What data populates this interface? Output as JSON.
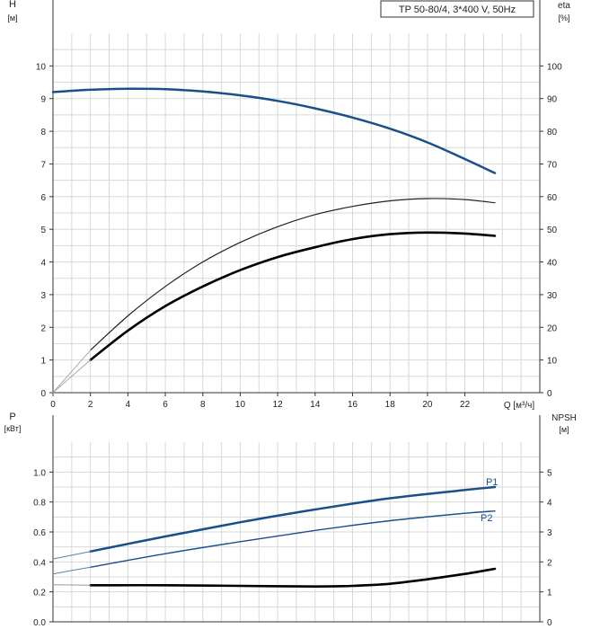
{
  "title": "TP 50-80/4, 3*400 V, 50Hz",
  "chart_data": [
    {
      "type": "line",
      "title": "TP 50-80/4, 3*400 V, 50Hz",
      "xlabel": "Q [м³/ч]",
      "xlim": [
        0,
        26
      ],
      "xticks": [
        0,
        2,
        4,
        6,
        8,
        10,
        12,
        14,
        16,
        18,
        20,
        22
      ],
      "left_axis": {
        "label_line1": "H",
        "label_line2": "[м]",
        "ylim": [
          0,
          11
        ],
        "ticks": [
          0,
          1,
          2,
          3,
          4,
          5,
          6,
          7,
          8,
          9,
          10
        ]
      },
      "right_axis": {
        "label_line1": "eta",
        "label_line2": "[%]",
        "ylim": [
          0,
          110
        ],
        "ticks": [
          0,
          10,
          20,
          30,
          40,
          50,
          60,
          70,
          80,
          90,
          100
        ]
      },
      "grid": true,
      "series": [
        {
          "axis": "left",
          "color": "#1a4f8a",
          "width": 2.5,
          "x": [
            0,
            2,
            4,
            6,
            8,
            10,
            12,
            14,
            16,
            18,
            20,
            22,
            23.6
          ],
          "y": [
            9.2,
            9.27,
            9.3,
            9.29,
            9.22,
            9.1,
            8.93,
            8.7,
            8.42,
            8.08,
            7.66,
            7.15,
            6.72
          ]
        },
        {
          "axis": "right",
          "color": "#222222",
          "width": 1.2,
          "x": [
            2,
            4,
            6,
            8,
            10,
            12,
            14,
            16,
            18,
            20,
            22,
            23.6
          ],
          "y": [
            13,
            23.5,
            32.5,
            40,
            46,
            50.8,
            54.5,
            57,
            58.7,
            59.4,
            59.1,
            58.1
          ]
        },
        {
          "axis": "right",
          "color": "#000000",
          "width": 2.6,
          "x": [
            2,
            4,
            6,
            8,
            10,
            12,
            14,
            16,
            18,
            20,
            22,
            23.6
          ],
          "y": [
            10,
            19,
            26.5,
            32.5,
            37.5,
            41.5,
            44.5,
            47,
            48.5,
            49,
            48.7,
            48
          ]
        },
        {
          "axis": "right",
          "color": "#aaaaaa",
          "width": 1,
          "x": [
            0,
            2
          ],
          "y": [
            0,
            13
          ]
        },
        {
          "axis": "right",
          "color": "#aaaaaa",
          "width": 1,
          "x": [
            0,
            2
          ],
          "y": [
            0,
            10
          ]
        }
      ]
    },
    {
      "type": "line",
      "xlim": [
        0,
        26
      ],
      "left_axis": {
        "label_line1": "P",
        "label_line2": "[кВт]",
        "ylim": [
          0,
          1.2
        ],
        "ticks": [
          0.0,
          0.2,
          0.4,
          0.6,
          0.8,
          1.0
        ],
        "tick_labels": [
          "0.0",
          "0.2",
          "0.4",
          "0.6",
          "0.8",
          "1.0"
        ]
      },
      "right_axis": {
        "label_line1": "NPSH",
        "label_line2": "[м]",
        "ylim": [
          0,
          6
        ],
        "ticks": [
          0,
          1,
          2,
          3,
          4,
          5
        ]
      },
      "grid": true,
      "series": [
        {
          "name": "P1",
          "axis": "left",
          "color": "#1a4f8a",
          "width": 2.5,
          "x": [
            2,
            6,
            10,
            14,
            18,
            22,
            23.6
          ],
          "y": [
            0.47,
            0.57,
            0.665,
            0.75,
            0.825,
            0.88,
            0.9
          ]
        },
        {
          "name": "P2",
          "axis": "left",
          "color": "#1a4f8a",
          "width": 1.4,
          "x": [
            2,
            6,
            10,
            14,
            18,
            22,
            23.6
          ],
          "y": [
            0.365,
            0.455,
            0.535,
            0.61,
            0.675,
            0.725,
            0.74
          ]
        },
        {
          "axis": "left",
          "color": "#5a7fae",
          "width": 1,
          "x": [
            0,
            2
          ],
          "y": [
            0.42,
            0.47
          ]
        },
        {
          "axis": "left",
          "color": "#5a7fae",
          "width": 1,
          "x": [
            0,
            2
          ],
          "y": [
            0.32,
            0.365
          ]
        },
        {
          "axis": "right",
          "color": "#000000",
          "width": 2.6,
          "x": [
            2,
            6,
            10,
            14,
            16,
            18,
            20,
            22,
            23.6
          ],
          "y": [
            1.22,
            1.22,
            1.2,
            1.18,
            1.2,
            1.27,
            1.42,
            1.6,
            1.77
          ]
        },
        {
          "axis": "right",
          "color": "#999999",
          "width": 1,
          "x": [
            0,
            2
          ],
          "y": [
            1.24,
            1.22
          ]
        }
      ]
    }
  ]
}
